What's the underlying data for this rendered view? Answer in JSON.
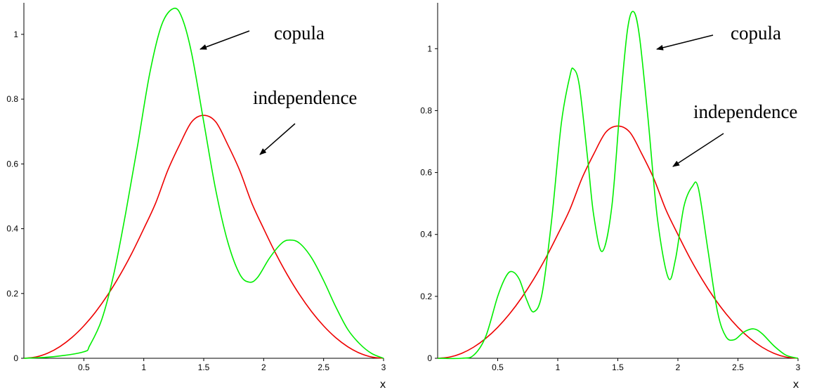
{
  "chart_data": [
    {
      "type": "line",
      "xlabel": "x",
      "ylabel": "",
      "xlim": [
        0,
        3
      ],
      "ylim": [
        0,
        1.08
      ],
      "x_ticks": [
        0.5,
        1,
        1.5,
        2,
        2.5,
        3
      ],
      "x_tick_labels": [
        "0.5",
        "1",
        "1.5",
        "2",
        "2.5",
        "3"
      ],
      "y_ticks": [
        0,
        0.2,
        0.4,
        0.6,
        0.8,
        1
      ],
      "y_tick_labels": [
        "0",
        "0.2",
        "0.4",
        "0.6",
        "0.8",
        "1"
      ],
      "grid": false,
      "series": [
        {
          "name": "copula",
          "color": "#00ee00",
          "x": [
            0,
            0.25,
            0.5,
            0.55,
            0.65,
            0.75,
            0.85,
            0.95,
            1.05,
            1.15,
            1.25,
            1.32,
            1.4,
            1.5,
            1.6,
            1.7,
            1.8,
            1.88,
            1.95,
            2.05,
            2.15,
            2.22,
            2.3,
            2.4,
            2.5,
            2.6,
            2.7,
            2.8,
            2.9,
            3.0
          ],
          "values": [
            0.0,
            0.005,
            0.02,
            0.04,
            0.12,
            0.26,
            0.45,
            0.66,
            0.88,
            1.03,
            1.08,
            1.05,
            0.94,
            0.73,
            0.52,
            0.36,
            0.26,
            0.235,
            0.25,
            0.31,
            0.355,
            0.365,
            0.355,
            0.31,
            0.24,
            0.16,
            0.09,
            0.045,
            0.015,
            0.0
          ]
        },
        {
          "name": "independence",
          "color": "#ee0000",
          "x": [
            0,
            0.1,
            0.2,
            0.3,
            0.4,
            0.5,
            0.6,
            0.7,
            0.8,
            0.9,
            1.0,
            1.1,
            1.2,
            1.3,
            1.4,
            1.5,
            1.6,
            1.7,
            1.8,
            1.9,
            2.0,
            2.1,
            2.2,
            2.3,
            2.4,
            2.5,
            2.6,
            2.7,
            2.8,
            2.9,
            3.0
          ],
          "values": [
            0.0,
            0.004,
            0.016,
            0.036,
            0.064,
            0.1,
            0.144,
            0.196,
            0.256,
            0.324,
            0.4,
            0.48,
            0.58,
            0.66,
            0.73,
            0.75,
            0.73,
            0.66,
            0.58,
            0.48,
            0.4,
            0.324,
            0.256,
            0.196,
            0.144,
            0.1,
            0.064,
            0.036,
            0.016,
            0.004,
            0.0
          ]
        }
      ],
      "annotations": [
        {
          "text": "copula",
          "target_series": "copula"
        },
        {
          "text": "independence",
          "target_series": "independence"
        }
      ]
    },
    {
      "type": "line",
      "xlabel": "x",
      "ylabel": "",
      "xlim": [
        0,
        3
      ],
      "ylim": [
        0,
        1.13
      ],
      "x_ticks": [
        0.5,
        1,
        1.5,
        2,
        2.5,
        3
      ],
      "x_tick_labels": [
        "0.5",
        "1",
        "1.5",
        "2",
        "2.5",
        "3"
      ],
      "y_ticks": [
        0,
        0.2,
        0.4,
        0.6,
        0.8,
        1
      ],
      "y_tick_labels": [
        "0",
        "0.2",
        "0.4",
        "0.6",
        "0.8",
        "1"
      ],
      "grid": false,
      "series": [
        {
          "name": "copula",
          "color": "#00ee00",
          "x": [
            0,
            0.2,
            0.3,
            0.4,
            0.5,
            0.57,
            0.62,
            0.68,
            0.74,
            0.8,
            0.87,
            0.95,
            1.03,
            1.1,
            1.13,
            1.18,
            1.25,
            1.3,
            1.37,
            1.45,
            1.52,
            1.58,
            1.63,
            1.68,
            1.75,
            1.83,
            1.92,
            1.98,
            2.05,
            2.12,
            2.17,
            2.25,
            2.33,
            2.4,
            2.47,
            2.55,
            2.63,
            2.7,
            2.8,
            2.9,
            3.0
          ],
          "values": [
            0.0,
            0.0,
            0.01,
            0.07,
            0.2,
            0.265,
            0.28,
            0.255,
            0.19,
            0.15,
            0.21,
            0.45,
            0.76,
            0.91,
            0.935,
            0.88,
            0.64,
            0.46,
            0.345,
            0.49,
            0.82,
            1.06,
            1.12,
            1.04,
            0.78,
            0.45,
            0.26,
            0.32,
            0.49,
            0.555,
            0.55,
            0.35,
            0.15,
            0.07,
            0.06,
            0.085,
            0.095,
            0.08,
            0.04,
            0.01,
            0.0
          ]
        },
        {
          "name": "independence",
          "color": "#ee0000",
          "x": [
            0,
            0.1,
            0.2,
            0.3,
            0.4,
            0.5,
            0.6,
            0.7,
            0.8,
            0.9,
            1.0,
            1.1,
            1.2,
            1.3,
            1.4,
            1.5,
            1.6,
            1.7,
            1.8,
            1.9,
            2.0,
            2.1,
            2.2,
            2.3,
            2.4,
            2.5,
            2.6,
            2.7,
            2.8,
            2.9,
            3.0
          ],
          "values": [
            0.0,
            0.004,
            0.016,
            0.036,
            0.064,
            0.1,
            0.144,
            0.196,
            0.256,
            0.324,
            0.4,
            0.48,
            0.58,
            0.66,
            0.73,
            0.75,
            0.73,
            0.66,
            0.58,
            0.48,
            0.4,
            0.324,
            0.256,
            0.196,
            0.144,
            0.1,
            0.064,
            0.036,
            0.016,
            0.004,
            0.0
          ]
        }
      ],
      "annotations": [
        {
          "text": "copula",
          "target_series": "copula"
        },
        {
          "text": "independence",
          "target_series": "independence"
        }
      ]
    }
  ]
}
